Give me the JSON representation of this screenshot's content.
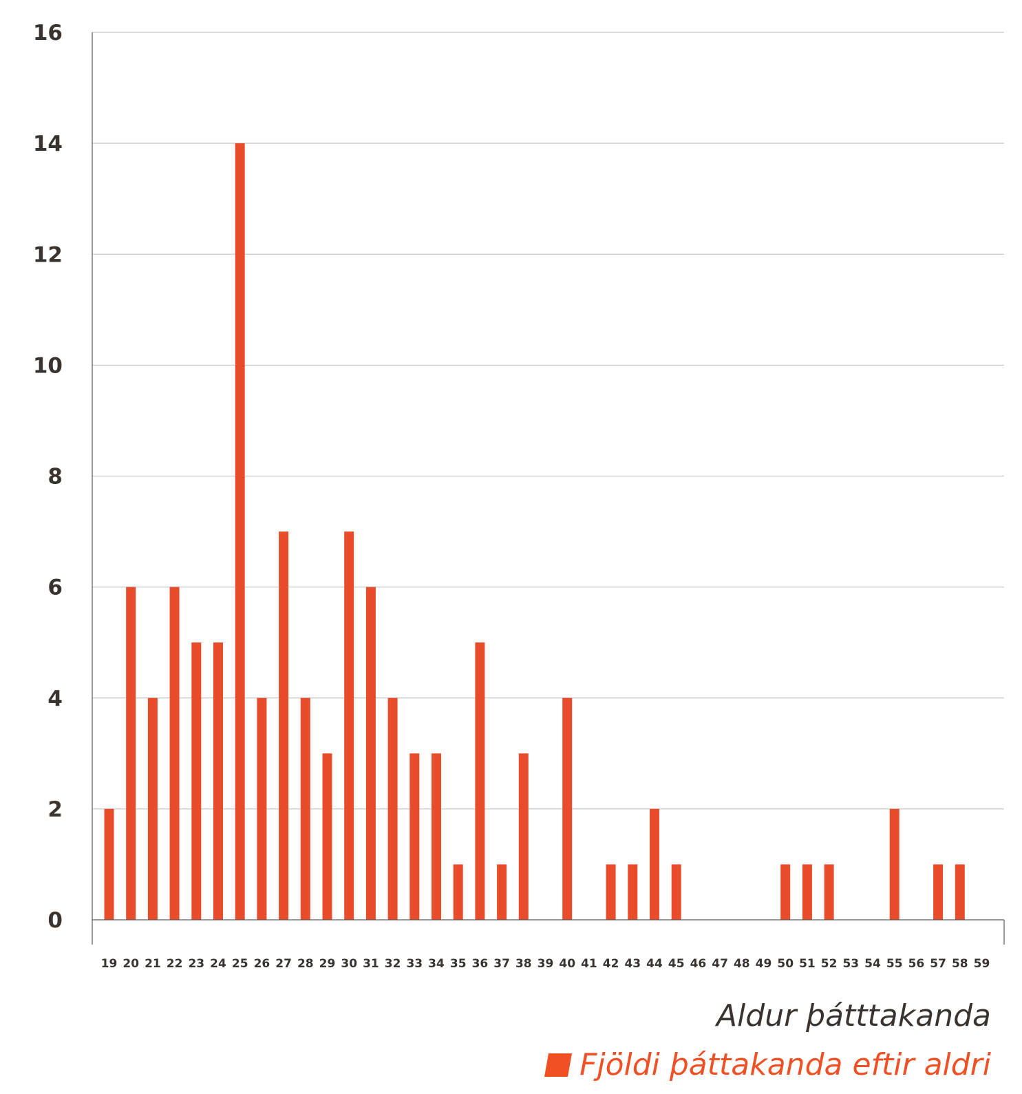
{
  "colors": {
    "bar": "#e84c2b",
    "legend_text": "#f05023",
    "text": "#3a3431",
    "grid": "#c9c9c9"
  },
  "chart_data": {
    "type": "bar",
    "title": "",
    "xlabel": "Aldur þátttakanda",
    "ylabel": "",
    "ylim": [
      0,
      16
    ],
    "yticks": [
      "0",
      "2",
      "4",
      "6",
      "8",
      "10",
      "12",
      "14",
      "16"
    ],
    "grid": true,
    "legend_position": "bottom-right",
    "categories": [
      "19",
      "20",
      "21",
      "22",
      "23",
      "24",
      "25",
      "26",
      "27",
      "28",
      "29",
      "30",
      "31",
      "32",
      "33",
      "34",
      "35",
      "36",
      "37",
      "38",
      "39",
      "40",
      "41",
      "42",
      "43",
      "44",
      "45",
      "46",
      "47",
      "48",
      "49",
      "50",
      "51",
      "52",
      "53",
      "54",
      "55",
      "56",
      "57",
      "58",
      "59"
    ],
    "series": [
      {
        "name": "Fjöldi þáttakanda eftir aldri",
        "values": [
          2,
          6,
          4,
          6,
          5,
          5,
          14,
          4,
          7,
          4,
          3,
          7,
          6,
          4,
          3,
          3,
          1,
          5,
          1,
          3,
          0,
          4,
          0,
          1,
          1,
          2,
          1,
          0,
          0,
          0,
          0,
          1,
          1,
          1,
          0,
          0,
          2,
          0,
          1,
          1,
          0
        ]
      }
    ]
  }
}
